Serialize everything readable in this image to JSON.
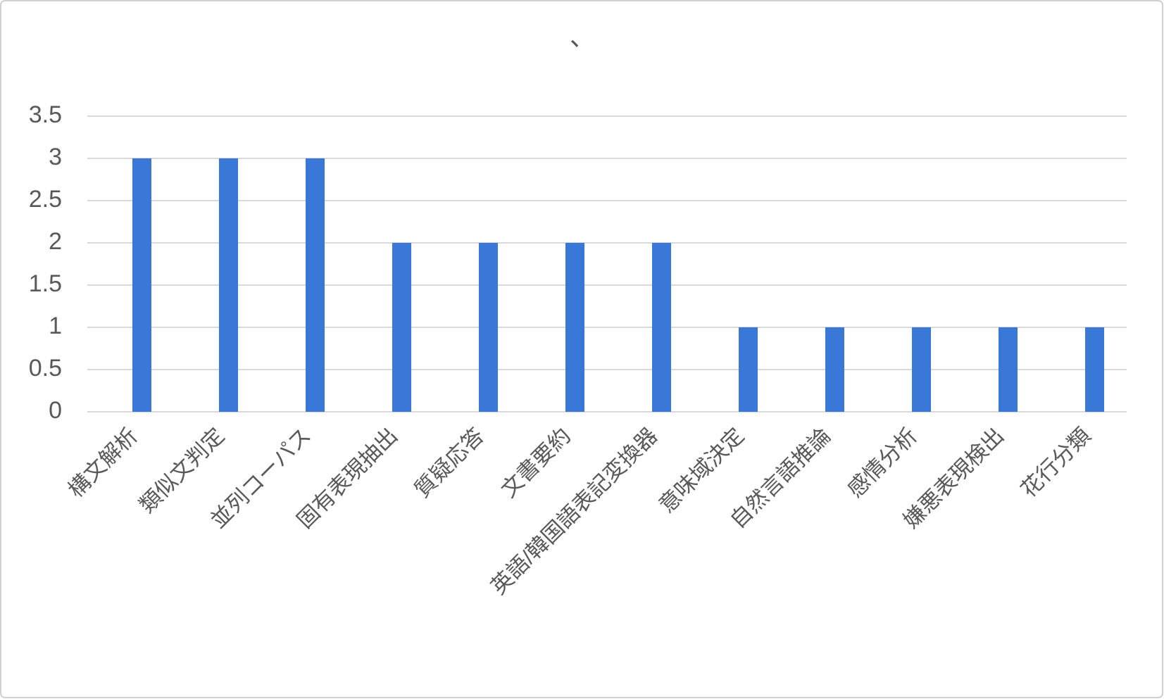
{
  "chart_data": {
    "type": "bar",
    "title": "、",
    "categories": [
      "構文解析",
      "類似文判定",
      "並列コーパス",
      "固有表現抽出",
      "質疑応答",
      "文書要約",
      "英語/韓国語表記変換器",
      "意味域決定",
      "自然言語推論",
      "感情分析",
      "嫌悪表現検出",
      "花行分類"
    ],
    "values": [
      3,
      3,
      3,
      2,
      2,
      2,
      2,
      1,
      1,
      1,
      1,
      1
    ],
    "color": "#3a78d8",
    "ylim": [
      0,
      3.5
    ],
    "yticks": [
      0,
      0.5,
      1,
      1.5,
      2,
      2.5,
      3,
      3.5
    ],
    "grid": true
  }
}
